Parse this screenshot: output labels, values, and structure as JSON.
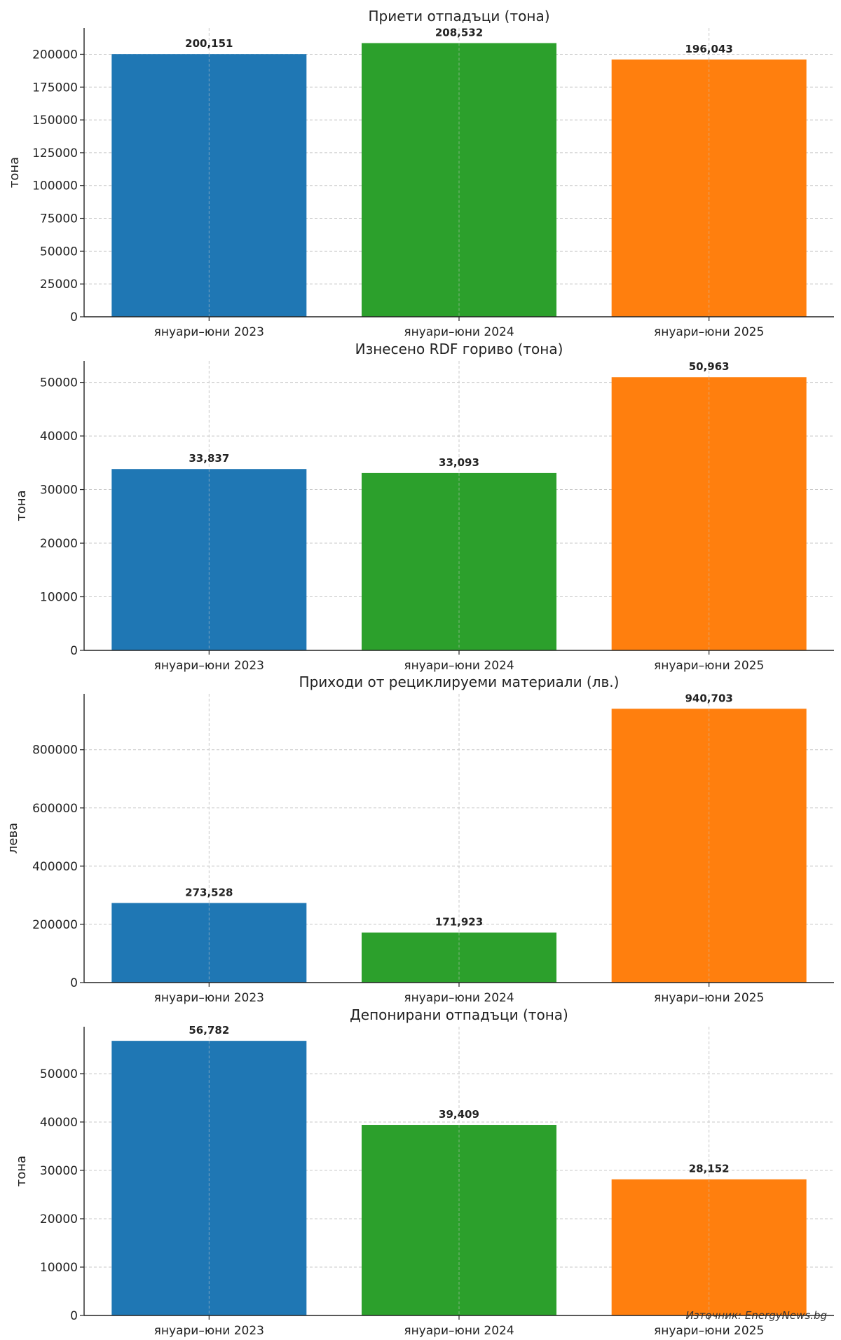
{
  "chart_data": [
    {
      "type": "bar",
      "title": "Приети отпадъци (тона)",
      "ylabel": "тона",
      "xlabel": "",
      "categories": [
        "януари–юни 2023",
        "януари–юни 2024",
        "януари–юни 2025"
      ],
      "values": [
        200151,
        208532,
        196043
      ],
      "value_labels": [
        "200,151",
        "208,532",
        "196,043"
      ],
      "ylim": [
        0,
        220000
      ],
      "yticks": [
        0,
        25000,
        50000,
        75000,
        100000,
        125000,
        150000,
        175000,
        200000
      ],
      "ytick_labels": [
        "0",
        "25000",
        "50000",
        "75000",
        "100000",
        "125000",
        "150000",
        "175000",
        "200000"
      ],
      "colors": [
        "#1f77b4",
        "#2ca02c",
        "#ff7f0e"
      ],
      "grid": true
    },
    {
      "type": "bar",
      "title": "Изнесено RDF гориво (тона)",
      "ylabel": "тона",
      "xlabel": "",
      "categories": [
        "януари–юни 2023",
        "януари–юни 2024",
        "януари–юни 2025"
      ],
      "values": [
        33837,
        33093,
        50963
      ],
      "value_labels": [
        "33,837",
        "33,093",
        "50,963"
      ],
      "ylim": [
        0,
        54000
      ],
      "yticks": [
        0,
        10000,
        20000,
        30000,
        40000,
        50000
      ],
      "ytick_labels": [
        "0",
        "10000",
        "20000",
        "30000",
        "40000",
        "50000"
      ],
      "colors": [
        "#1f77b4",
        "#2ca02c",
        "#ff7f0e"
      ],
      "grid": true
    },
    {
      "type": "bar",
      "title": "Приходи от рециклируеми материали (лв.)",
      "ylabel": "лева",
      "xlabel": "",
      "categories": [
        "януари–юни 2023",
        "януари–юни 2024",
        "януари–юни 2025"
      ],
      "values": [
        273528,
        171923,
        940703
      ],
      "value_labels": [
        "273,528",
        "171,923",
        "940,703"
      ],
      "ylim": [
        0,
        992000
      ],
      "yticks": [
        0,
        200000,
        400000,
        600000,
        800000
      ],
      "ytick_labels": [
        "0",
        "200000",
        "400000",
        "600000",
        "800000"
      ],
      "colors": [
        "#1f77b4",
        "#2ca02c",
        "#ff7f0e"
      ],
      "grid": true
    },
    {
      "type": "bar",
      "title": "Депонирани отпадъци (тона)",
      "ylabel": "тона",
      "xlabel": "",
      "categories": [
        "януари–юни 2023",
        "януари–юни 2024",
        "януари–юни 2025"
      ],
      "values": [
        56782,
        39409,
        28152
      ],
      "value_labels": [
        "56,782",
        "39,409",
        "28,152"
      ],
      "ylim": [
        0,
        59700
      ],
      "yticks": [
        0,
        10000,
        20000,
        30000,
        40000,
        50000
      ],
      "ytick_labels": [
        "0",
        "10000",
        "20000",
        "30000",
        "40000",
        "50000"
      ],
      "colors": [
        "#1f77b4",
        "#2ca02c",
        "#ff7f0e"
      ],
      "grid": true
    }
  ],
  "source_note": "Източник: EnergyNews.bg"
}
